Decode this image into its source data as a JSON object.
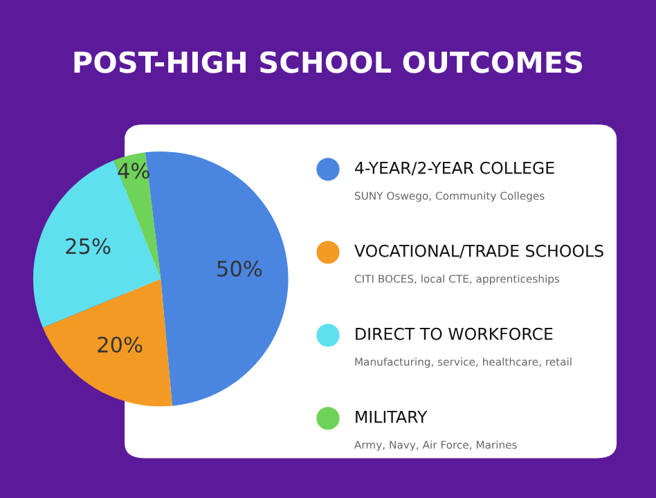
{
  "chart_data": {
    "type": "pie",
    "title": "POST-HIGH SCHOOL OUTCOMES",
    "categories": [
      "4-YEAR/2-YEAR COLLEGE",
      "VOCATIONAL/TRADE SCHOOLS",
      "DIRECT TO WORKFORCE",
      "MILITARY"
    ],
    "values": [
      50,
      20,
      25,
      4
    ],
    "value_labels": [
      "50%",
      "20%",
      "25%",
      "4%"
    ],
    "colors": [
      "#4a86e0",
      "#f39a25",
      "#5ee0ee",
      "#6fd35a"
    ],
    "annotations": [
      "SUNY Oswego, Community Colleges",
      "CITI BOCES, local CTE, apprenticeships",
      "Manufacturing, service, healthcare, retail",
      "Army, Navy, Air Force, Marines"
    ],
    "legend": "right"
  }
}
